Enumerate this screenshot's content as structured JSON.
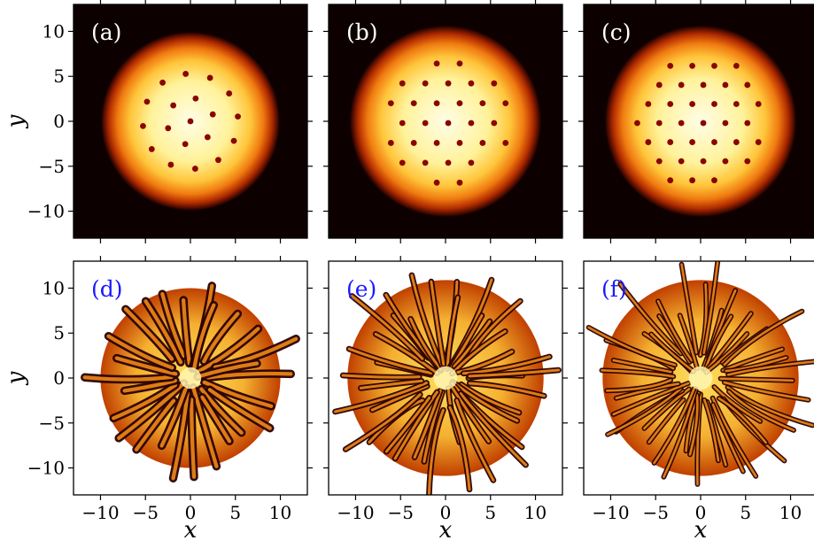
{
  "figure": {
    "panels": [
      {
        "id": "a",
        "label": "(a)",
        "kind": "density",
        "label_color": "#ffffff",
        "vortices": 19
      },
      {
        "id": "b",
        "label": "(b)",
        "kind": "density",
        "label_color": "#ffffff",
        "vortices": 37
      },
      {
        "id": "c",
        "label": "(c)",
        "kind": "density",
        "label_color": "#ffffff",
        "vortices": 44
      },
      {
        "id": "d",
        "label": "(d)",
        "kind": "phase",
        "label_color": "#1a1aff"
      },
      {
        "id": "e",
        "label": "(e)",
        "kind": "phase",
        "label_color": "#1a1aff"
      },
      {
        "id": "f",
        "label": "(f)",
        "kind": "phase",
        "label_color": "#1a1aff"
      }
    ],
    "x_axis": {
      "label": "x",
      "ticks": [
        -10,
        -5,
        0,
        5,
        10
      ],
      "tick_labels": [
        "−10",
        "−5",
        "0",
        "5",
        "10"
      ],
      "range": [
        -13,
        13
      ]
    },
    "y_axis": {
      "label": "y",
      "ticks": [
        10,
        5,
        0,
        -5,
        -10
      ],
      "tick_labels": [
        "10",
        "5",
        "0",
        "−5",
        "−10"
      ],
      "range": [
        -13,
        13
      ]
    },
    "colormap": "afmhot",
    "colors": {
      "density_background": "#0d0000",
      "density_core": "#fffde0",
      "vortex": "#8a0500",
      "phase_dark": "#2a0000",
      "phase_light": "#fff6a0",
      "panel_label_density": "#ffffff",
      "panel_label_phase": "#1a1aff"
    }
  }
}
